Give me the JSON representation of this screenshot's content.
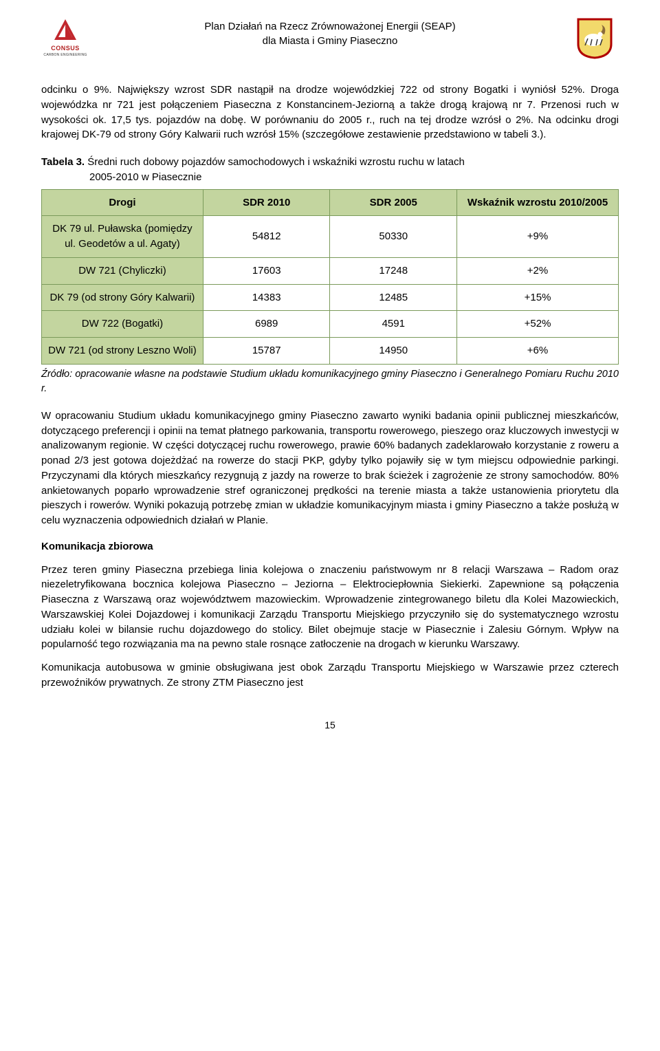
{
  "header": {
    "title_line1": "Plan Działań na Rzecz Zrównoważonej Energii (SEAP)",
    "title_line2": "dla Miasta i Gminy Piaseczno",
    "logo_left_label": "CONSUS",
    "logo_left_sub": "CARBON ENGINEERING",
    "logo_left_color": "#c1272d",
    "logo_right_bg": "#f2d96b",
    "logo_right_border": "#b00000"
  },
  "para1": "odcinku o 9%. Największy wzrost SDR nastąpił na drodze wojewódzkiej 722 od strony Bogatki i wyniósł 52%. Droga wojewódzka nr 721 jest połączeniem Piaseczna z Konstancinem-Jeziorną a także drogą krajową nr 7. Przenosi ruch w wysokości ok. 17,5 tys. pojazdów na dobę. W porównaniu do 2005 r., ruch na tej drodze wzrósł o 2%. Na odcinku drogi krajowej DK-79 od strony Góry Kalwarii ruch wzrósł 15% (szczegółowe zestawienie przedstawiono w tabeli 3.).",
  "table_caption_label": "Tabela 3.",
  "table_caption_text1": " Średni ruch dobowy pojazdów samochodowych i wskaźniki wzrostu ruchu w latach",
  "table_caption_text2": "2005-2010 w Piasecznie",
  "table": {
    "header_bg": "#c3d59f",
    "body_bg": "#ffffff",
    "border_color": "#7a9a5a",
    "columns": [
      "Drogi",
      "SDR 2010",
      "SDR 2005",
      "Wskaźnik wzrostu 2010/2005"
    ],
    "rows": [
      {
        "label": "DK 79 ul. Puławska (pomiędzy ul. Geodetów a ul. Agaty)",
        "sdr2010": "54812",
        "sdr2005": "50330",
        "wsk": "+9%"
      },
      {
        "label": "DW 721 (Chyliczki)",
        "sdr2010": "17603",
        "sdr2005": "17248",
        "wsk": "+2%"
      },
      {
        "label": "DK 79 (od strony Góry Kalwarii)",
        "sdr2010": "14383",
        "sdr2005": "12485",
        "wsk": "+15%"
      },
      {
        "label": "DW 722 (Bogatki)",
        "sdr2010": "6989",
        "sdr2005": "4591",
        "wsk": "+52%"
      },
      {
        "label": "DW 721 (od strony Leszno Woli)",
        "sdr2010": "15787",
        "sdr2005": "14950",
        "wsk": "+6%"
      }
    ]
  },
  "source": "Źródło: opracowanie własne na podstawie Studium układu komunikacyjnego gminy Piaseczno i Generalnego Pomiaru Ruchu 2010 r.",
  "para2": "W opracowaniu Studium układu komunikacyjnego gminy Piaseczno zawarto wyniki badania opinii publicznej mieszkańców, dotyczącego preferencji i opinii na temat płatnego parkowania, transportu rowerowego, pieszego oraz kluczowych inwestycji w analizowanym regionie. W części dotyczącej ruchu rowerowego, prawie 60% badanych zadeklarowało korzystanie z roweru a ponad 2/3 jest gotowa dojeżdżać na rowerze do stacji PKP, gdyby tylko pojawiły się w tym miejscu odpowiednie parkingi. Przyczynami dla których mieszkańcy rezygnują z jazdy na rowerze to brak ścieżek i zagrożenie ze strony samochodów. 80% ankietowanych poparło wprowadzenie stref ograniczonej prędkości na terenie miasta a także ustanowienia priorytetu dla pieszych i rowerów. Wyniki pokazują potrzebę zmian w układzie komunikacyjnym miasta i gminy Piaseczno a także posłużą w celu wyznaczenia odpowiednich działań w Planie.",
  "heading2": "Komunikacja zbiorowa",
  "para3": "Przez teren gminy Piaseczna przebiega linia kolejowa o znaczeniu państwowym nr 8 relacji Warszawa – Radom oraz niezeletryfikowana bocznica kolejowa Piaseczno – Jeziorna – Elektrociepłownia Siekierki. Zapewnione są połączenia Piaseczna z Warszawą oraz województwem mazowieckim. Wprowadzenie zintegrowanego biletu dla Kolei Mazowieckich, Warszawskiej Kolei Dojazdowej i komunikacji Zarządu Transportu Miejskiego przyczyniło się do systematycznego wzrostu udziału kolei w bilansie ruchu dojazdowego do stolicy. Bilet obejmuje stacje w Piasecznie i Zalesiu Górnym. Wpływ na popularność tego rozwiązania ma na pewno stale rosnące zatłoczenie na drogach w kierunku Warszawy.",
  "para4": "Komunikacja autobusowa w gminie obsługiwana jest obok Zarządu Transportu Miejskiego w Warszawie przez czterech przewoźników prywatnych. Ze strony ZTM Piaseczno jest",
  "page_number": "15"
}
